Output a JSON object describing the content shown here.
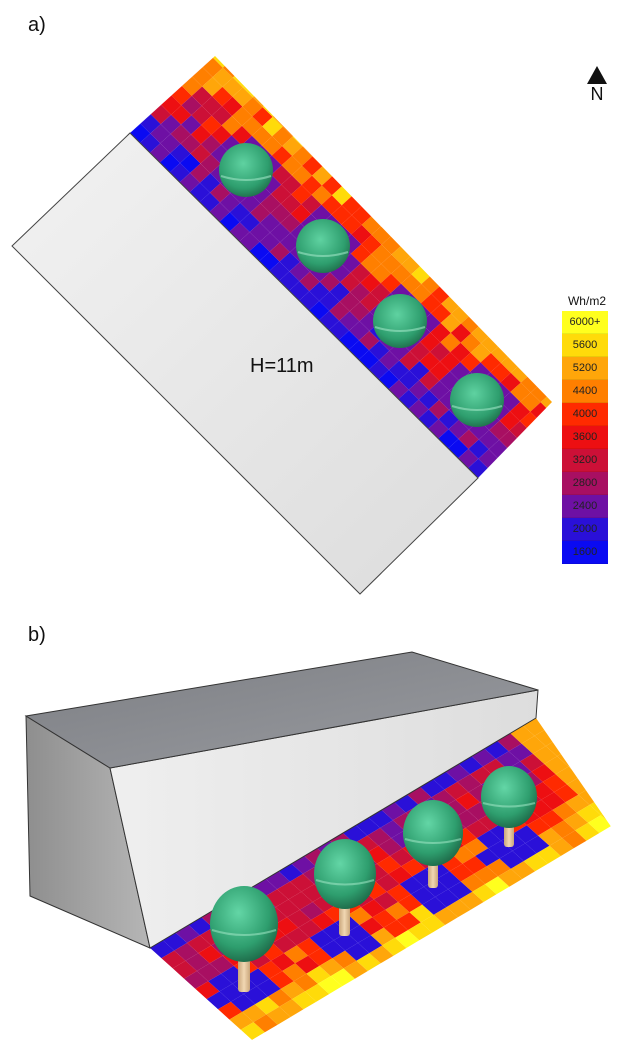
{
  "panels": {
    "a": {
      "label": "a)"
    },
    "b": {
      "label": "b)"
    }
  },
  "north": {
    "label": "N"
  },
  "building": {
    "height_label": "H=11m"
  },
  "legend": {
    "title": "Wh/m2",
    "entries": [
      {
        "label": "6000+",
        "color": "#ffff1e"
      },
      {
        "label": "5600",
        "color": "#ffdb0a"
      },
      {
        "label": "5200",
        "color": "#ffa60a"
      },
      {
        "label": "4400",
        "color": "#ff7f00"
      },
      {
        "label": "4000",
        "color": "#ff2a00"
      },
      {
        "label": "3600",
        "color": "#ed0f12"
      },
      {
        "label": "3200",
        "color": "#cc1037"
      },
      {
        "label": "2800",
        "color": "#a80f62"
      },
      {
        "label": "2400",
        "color": "#6e10a4"
      },
      {
        "label": "2000",
        "color": "#2a10d8"
      },
      {
        "label": "1600",
        "color": "#0a0af2"
      }
    ]
  },
  "colors": {
    "tree_canopy": "#2e9e6e",
    "tree_trunk": "#e8c9a0",
    "roof": "#8b8d92",
    "wall": "#e6e6e6",
    "wall_side": "#a3a3a3"
  }
}
